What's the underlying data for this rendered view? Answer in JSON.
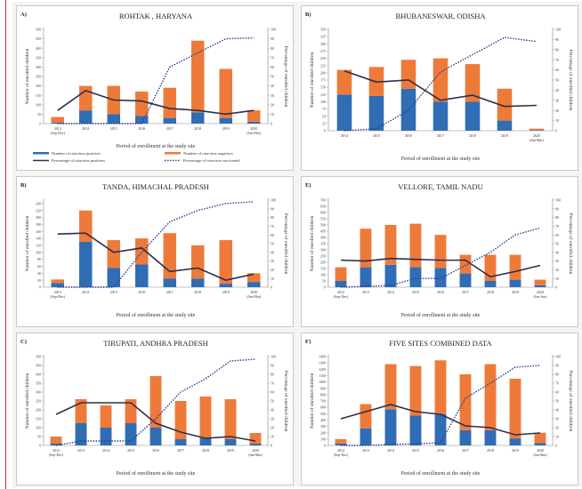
{
  "colors": {
    "positive": "#2f6db5",
    "negative": "#ee7a3a",
    "pct_positive_line": "#2b2f4a",
    "vaccinated_line": "#2b3d8f",
    "accent_red": "#d8262b"
  },
  "legend": {
    "positive": "Number of rotavirus positives",
    "negative": "Number of rotavirus negatives",
    "pct_positive": "Percentage of rotavirus positives",
    "pct_vaccinated": "Percentage of rotavirus vaccinated"
  },
  "chart_data": [
    {
      "id": "A",
      "panel_letter": "A)",
      "type": "bar",
      "title": "ROHTAK , HARYANA",
      "xlabel": "Period of enrollment at the study site",
      "ylabel": "Number of enrolled children",
      "y2label": "Percentage of enrolled children",
      "ylim": [
        0,
        500
      ],
      "yticks": [
        0,
        50,
        100,
        150,
        200,
        250,
        300,
        350,
        400,
        450,
        500
      ],
      "y2lim": [
        0,
        100
      ],
      "y2ticks": [
        0,
        10,
        20,
        30,
        40,
        50,
        60,
        70,
        80,
        90,
        100
      ],
      "categories": [
        "2013 (Sep-Dec)",
        "2014",
        "2015",
        "2016",
        "2017",
        "2018",
        "2019",
        "2020 (Jan-Mar)"
      ],
      "series": [
        {
          "name": "Number of rotavirus positives",
          "kind": "stacked-bar",
          "values": [
            5,
            70,
            50,
            40,
            30,
            60,
            30,
            10
          ]
        },
        {
          "name": "Number of rotavirus negatives",
          "kind": "stacked-bar",
          "values": [
            30,
            130,
            150,
            130,
            160,
            380,
            260,
            60
          ]
        },
        {
          "name": "Percentage of rotavirus positives",
          "kind": "line",
          "axis": "right",
          "values": [
            14,
            35,
            25,
            24,
            16,
            14,
            10,
            14
          ]
        },
        {
          "name": "Percentage of rotavirus vaccinated",
          "kind": "dotted-line",
          "axis": "right",
          "values": [
            0,
            0,
            0,
            0,
            60,
            75,
            90,
            91
          ]
        }
      ],
      "show_legend": true
    },
    {
      "id": "B",
      "panel_letter": "B)",
      "type": "bar",
      "title": "BHUBANESWAR, ODISHA",
      "xlabel": "Period of enrollment at the study site",
      "ylabel": "Number of enrolled children",
      "y2label": "Percentage of enrolled children",
      "ylim": [
        0,
        350
      ],
      "yticks": [
        0,
        25,
        50,
        75,
        100,
        125,
        150,
        175,
        200,
        225,
        250,
        275,
        300,
        325,
        350
      ],
      "y2lim": [
        0,
        100
      ],
      "y2ticks": [
        0,
        10,
        20,
        30,
        40,
        50,
        60,
        70,
        80,
        90,
        100
      ],
      "categories": [
        "2014",
        "2015",
        "2016",
        "2017",
        "2018",
        "2019",
        "2020 (Jan-Mar)"
      ],
      "series": [
        {
          "name": "Number of rotavirus positives",
          "kind": "stacked-bar",
          "values": [
            125,
            120,
            145,
            100,
            100,
            35,
            2
          ]
        },
        {
          "name": "Number of rotavirus negatives",
          "kind": "stacked-bar",
          "values": [
            85,
            100,
            100,
            150,
            130,
            110,
            5
          ]
        },
        {
          "name": "Percentage of rotavirus positives",
          "kind": "line",
          "axis": "right",
          "values": [
            59,
            48,
            50,
            30,
            35,
            24,
            25
          ]
        },
        {
          "name": "Percentage of rotavirus vaccinated",
          "kind": "dotted-line",
          "axis": "right",
          "values": [
            0,
            2,
            20,
            58,
            75,
            92,
            88
          ]
        }
      ]
    },
    {
      "id": "C",
      "panel_letter": "B)",
      "type": "bar",
      "title": "TANDA, HIMACHAL PRADESH",
      "xlabel": "Period of enrollment at the study site",
      "ylabel": "Number of enrolled children",
      "y2label": "Percentage of enrolled children",
      "ylim": [
        0,
        250
      ],
      "yticks": [
        0,
        20,
        40,
        60,
        80,
        100,
        120,
        140,
        160,
        180,
        200,
        220,
        240
      ],
      "y2lim": [
        0,
        100
      ],
      "y2ticks": [
        0,
        10,
        20,
        30,
        40,
        50,
        60,
        70,
        80,
        90,
        100
      ],
      "categories": [
        "2013 (Sep-Dec)",
        "2014",
        "2015",
        "2016",
        "2017",
        "2018",
        "2019",
        "2020 (Jan-Mar)"
      ],
      "series": [
        {
          "name": "Number of rotavirus positives",
          "kind": "stacked-bar",
          "values": [
            12,
            130,
            55,
            65,
            25,
            25,
            10,
            15
          ]
        },
        {
          "name": "Number of rotavirus negatives",
          "kind": "stacked-bar",
          "values": [
            10,
            90,
            80,
            75,
            130,
            95,
            125,
            25
          ]
        },
        {
          "name": "Percentage of rotavirus positives",
          "kind": "line",
          "axis": "right",
          "values": [
            61,
            62,
            40,
            45,
            18,
            22,
            8,
            15
          ]
        },
        {
          "name": "Percentage of rotavirus vaccinated",
          "kind": "dotted-line",
          "axis": "right",
          "values": [
            0,
            0,
            0,
            40,
            75,
            88,
            96,
            98
          ]
        }
      ]
    },
    {
      "id": "D",
      "panel_letter": "E)",
      "type": "bar",
      "title": "VELLORE, TAMIL NADU",
      "xlabel": "Period of enrollment at the study site",
      "ylabel": "Number of enrolled children",
      "y2label": "Percentage of enrolled children",
      "ylim": [
        0,
        700
      ],
      "yticks": [
        0,
        50,
        100,
        150,
        200,
        250,
        300,
        350,
        400,
        450,
        500,
        550,
        600,
        650,
        700
      ],
      "y2lim": [
        0,
        100
      ],
      "y2ticks": [
        0,
        10,
        20,
        30,
        40,
        50,
        60,
        70,
        80,
        90,
        100
      ],
      "categories": [
        "2012 (Sep-Dec)",
        "2013",
        "2014",
        "2015",
        "2016",
        "2017",
        "2018",
        "2019",
        "2020 (Jan-Jun)"
      ],
      "series": [
        {
          "name": "Number of rotavirus positives",
          "kind": "stacked-bar",
          "values": [
            50,
            160,
            180,
            160,
            155,
            110,
            50,
            60,
            15
          ]
        },
        {
          "name": "Number of rotavirus negatives",
          "kind": "stacked-bar",
          "values": [
            110,
            310,
            320,
            350,
            265,
            150,
            210,
            200,
            45
          ]
        },
        {
          "name": "Percentage of rotavirus positives",
          "kind": "line",
          "axis": "right",
          "values": [
            31,
            30,
            33,
            32,
            31,
            31,
            12,
            18,
            25
          ]
        },
        {
          "name": "Percentage of rotavirus vaccinated",
          "kind": "dotted-line",
          "axis": "right",
          "values": [
            0,
            1,
            2,
            10,
            10,
            25,
            40,
            60,
            68
          ]
        }
      ]
    },
    {
      "id": "E",
      "panel_letter": "C)",
      "type": "bar",
      "title": "TIRUPATI, ANDHRA PRADESH",
      "xlabel": "Period of enrollment at the study site",
      "ylabel": "Number of enrolled children",
      "y2label": "Percentage of enrolled children",
      "ylim": [
        0,
        500
      ],
      "yticks": [
        0,
        50,
        100,
        150,
        200,
        250,
        300,
        350,
        400,
        450,
        500
      ],
      "y2lim": [
        0,
        100
      ],
      "y2ticks": [
        0,
        10,
        20,
        30,
        40,
        50,
        60,
        70,
        80,
        90,
        100
      ],
      "categories": [
        "2012 (Sep-Dec)",
        "2013",
        "2014",
        "2015",
        "2016",
        "2017",
        "2018",
        "2019",
        "2020 (Jan-Mar)"
      ],
      "series": [
        {
          "name": "Number of rotavirus positives",
          "kind": "stacked-bar",
          "values": [
            10,
            125,
            100,
            125,
            100,
            35,
            40,
            35,
            10
          ]
        },
        {
          "name": "Number of rotavirus negatives",
          "kind": "stacked-bar",
          "values": [
            40,
            135,
            125,
            135,
            290,
            215,
            235,
            225,
            60
          ]
        },
        {
          "name": "Percentage of rotavirus positives",
          "kind": "line",
          "axis": "right",
          "values": [
            35,
            48,
            48,
            48,
            25,
            15,
            8,
            10,
            5
          ]
        },
        {
          "name": "Percentage of rotavirus vaccinated",
          "kind": "dotted-line",
          "axis": "right",
          "values": [
            0,
            5,
            5,
            5,
            30,
            60,
            75,
            95,
            97
          ]
        }
      ]
    },
    {
      "id": "F",
      "panel_letter": "F)",
      "type": "bar",
      "title": "FIVE SITES COMBINED DATA",
      "xlabel": "Period of enrollment at the study site",
      "ylabel": "Number of enrolled children",
      "y2label": "Percentage of enrolled children",
      "ylim": [
        0,
        1400
      ],
      "yticks": [
        0,
        100,
        200,
        300,
        400,
        500,
        600,
        700,
        800,
        900,
        1000,
        1100,
        1200,
        1300,
        1400
      ],
      "y2lim": [
        0,
        100
      ],
      "y2ticks": [
        0,
        10,
        20,
        30,
        40,
        50,
        60,
        70,
        80,
        90,
        100
      ],
      "categories": [
        "2012 (Sep-Dec)",
        "2013",
        "2014",
        "2015",
        "2016",
        "2017",
        "2018",
        "2019",
        "2020 (Jan-Mar)"
      ],
      "series": [
        {
          "name": "Number of rotavirus positives",
          "kind": "stacked-bar",
          "values": [
            30,
            270,
            570,
            470,
            490,
            240,
            240,
            110,
            40
          ]
        },
        {
          "name": "Number of rotavirus negatives",
          "kind": "stacked-bar",
          "values": [
            70,
            380,
            710,
            780,
            850,
            880,
            1040,
            940,
            160
          ]
        },
        {
          "name": "Percentage of rotavirus positives",
          "kind": "line",
          "axis": "right",
          "values": [
            30,
            38,
            46,
            38,
            35,
            22,
            20,
            12,
            14
          ]
        },
        {
          "name": "Percentage of rotavirus vaccinated",
          "kind": "dotted-line",
          "axis": "right",
          "values": [
            0,
            0,
            1,
            2,
            3,
            53,
            70,
            88,
            90
          ]
        }
      ]
    }
  ]
}
